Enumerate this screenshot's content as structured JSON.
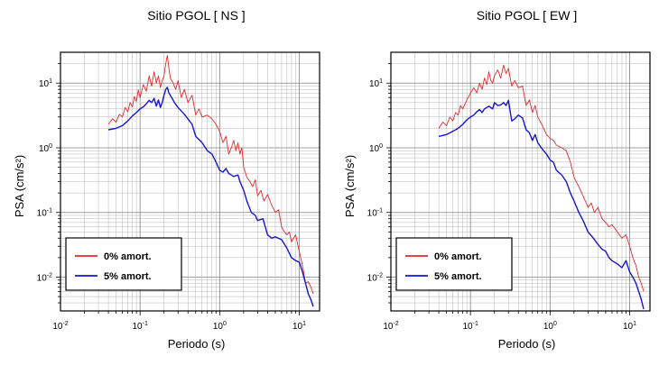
{
  "chart_data": [
    {
      "type": "line",
      "title": "Sitio PGOL [ NS ]",
      "xlabel": "Periodo (s)",
      "ylabel": "PSA (cm/s²)",
      "xscale": "log",
      "yscale": "log",
      "xlim": [
        0.01,
        18
      ],
      "ylim": [
        0.003,
        30
      ],
      "grid": true,
      "legend_position": "bottom-left",
      "x_ticks": [
        {
          "label": "10",
          "exp": "-2",
          "value": 0.01
        },
        {
          "label": "10",
          "exp": "-1",
          "value": 0.1
        },
        {
          "label": "10",
          "exp": "0",
          "value": 1
        },
        {
          "label": "10",
          "exp": "1",
          "value": 10
        }
      ],
      "y_ticks": [
        {
          "label": "10",
          "exp": "-2",
          "value": 0.01
        },
        {
          "label": "10",
          "exp": "-1",
          "value": 0.1
        },
        {
          "label": "10",
          "exp": "0",
          "value": 1
        },
        {
          "label": "10",
          "exp": "1",
          "value": 10
        }
      ],
      "series": [
        {
          "name": "0% amort.",
          "color": "#e8282a",
          "points": [
            [
              0.04,
              2.3
            ],
            [
              0.045,
              2.8
            ],
            [
              0.05,
              2.5
            ],
            [
              0.055,
              3.3
            ],
            [
              0.06,
              3.0
            ],
            [
              0.065,
              4.2
            ],
            [
              0.07,
              3.6
            ],
            [
              0.075,
              5.0
            ],
            [
              0.08,
              4.3
            ],
            [
              0.085,
              6.2
            ],
            [
              0.09,
              5.2
            ],
            [
              0.095,
              7.8
            ],
            [
              0.1,
              6.0
            ],
            [
              0.11,
              9.5
            ],
            [
              0.12,
              7.5
            ],
            [
              0.13,
              13.0
            ],
            [
              0.14,
              9.0
            ],
            [
              0.15,
              15.0
            ],
            [
              0.16,
              10.0
            ],
            [
              0.17,
              13.0
            ],
            [
              0.18,
              8.5
            ],
            [
              0.19,
              11.0
            ],
            [
              0.2,
              13.0
            ],
            [
              0.21,
              20.0
            ],
            [
              0.22,
              27.0
            ],
            [
              0.23,
              17.0
            ],
            [
              0.24,
              12.0
            ],
            [
              0.26,
              10.0
            ],
            [
              0.28,
              8.0
            ],
            [
              0.3,
              11.0
            ],
            [
              0.33,
              6.0
            ],
            [
              0.36,
              8.0
            ],
            [
              0.4,
              5.0
            ],
            [
              0.45,
              6.5
            ],
            [
              0.5,
              3.2
            ],
            [
              0.55,
              4.0
            ],
            [
              0.6,
              3.0
            ],
            [
              0.7,
              3.2
            ],
            [
              0.8,
              2.8
            ],
            [
              0.9,
              2.3
            ],
            [
              1.0,
              1.8
            ],
            [
              1.1,
              1.2
            ],
            [
              1.2,
              1.5
            ],
            [
              1.3,
              0.8
            ],
            [
              1.4,
              1.0
            ],
            [
              1.5,
              1.3
            ],
            [
              1.6,
              0.9
            ],
            [
              1.7,
              1.2
            ],
            [
              1.8,
              0.8
            ],
            [
              1.9,
              1.0
            ],
            [
              2.0,
              0.5
            ],
            [
              2.2,
              0.35
            ],
            [
              2.4,
              0.3
            ],
            [
              2.6,
              0.25
            ],
            [
              2.8,
              0.32
            ],
            [
              3.0,
              0.18
            ],
            [
              3.3,
              0.22
            ],
            [
              3.6,
              0.15
            ],
            [
              4.0,
              0.19
            ],
            [
              4.5,
              0.13
            ],
            [
              5.0,
              0.1
            ],
            [
              5.5,
              0.11
            ],
            [
              6.0,
              0.06
            ],
            [
              6.5,
              0.05
            ],
            [
              7.0,
              0.045
            ],
            [
              7.5,
              0.05
            ],
            [
              8.0,
              0.035
            ],
            [
              9.0,
              0.045
            ],
            [
              10.0,
              0.025
            ],
            [
              11.0,
              0.015
            ],
            [
              12.0,
              0.008
            ],
            [
              13.0,
              0.0085
            ],
            [
              14.0,
              0.007
            ],
            [
              15.0,
              0.0055
            ]
          ]
        },
        {
          "name": "5% amort.",
          "color": "#1515d4",
          "points": [
            [
              0.04,
              1.9
            ],
            [
              0.05,
              2.0
            ],
            [
              0.06,
              2.2
            ],
            [
              0.07,
              2.6
            ],
            [
              0.08,
              3.1
            ],
            [
              0.09,
              3.5
            ],
            [
              0.1,
              4.0
            ],
            [
              0.11,
              4.3
            ],
            [
              0.12,
              4.8
            ],
            [
              0.13,
              5.4
            ],
            [
              0.14,
              5.0
            ],
            [
              0.15,
              5.8
            ],
            [
              0.16,
              4.4
            ],
            [
              0.17,
              5.5
            ],
            [
              0.18,
              4.2
            ],
            [
              0.19,
              5.0
            ],
            [
              0.2,
              6.5
            ],
            [
              0.21,
              8.0
            ],
            [
              0.22,
              8.6
            ],
            [
              0.23,
              7.0
            ],
            [
              0.25,
              6.0
            ],
            [
              0.27,
              5.0
            ],
            [
              0.3,
              4.2
            ],
            [
              0.33,
              3.7
            ],
            [
              0.36,
              3.3
            ],
            [
              0.4,
              2.8
            ],
            [
              0.45,
              2.3
            ],
            [
              0.5,
              1.5
            ],
            [
              0.6,
              1.2
            ],
            [
              0.7,
              0.9
            ],
            [
              0.8,
              0.8
            ],
            [
              0.9,
              0.6
            ],
            [
              1.0,
              0.45
            ],
            [
              1.1,
              0.42
            ],
            [
              1.2,
              0.48
            ],
            [
              1.3,
              0.4
            ],
            [
              1.5,
              0.36
            ],
            [
              1.7,
              0.38
            ],
            [
              1.8,
              0.3
            ],
            [
              2.0,
              0.22
            ],
            [
              2.2,
              0.15
            ],
            [
              2.5,
              0.1
            ],
            [
              2.8,
              0.09
            ],
            [
              3.0,
              0.075
            ],
            [
              3.5,
              0.08
            ],
            [
              4.0,
              0.045
            ],
            [
              4.5,
              0.04
            ],
            [
              5.0,
              0.042
            ],
            [
              6.0,
              0.038
            ],
            [
              7.0,
              0.028
            ],
            [
              8.0,
              0.02
            ],
            [
              9.0,
              0.018
            ],
            [
              10.0,
              0.017
            ],
            [
              11.0,
              0.012
            ],
            [
              12.0,
              0.008
            ],
            [
              13.0,
              0.0055
            ],
            [
              14.0,
              0.0045
            ],
            [
              15.0,
              0.0035
            ]
          ]
        }
      ]
    },
    {
      "type": "line",
      "title": "Sitio PGOL [ EW ]",
      "xlabel": "Periodo (s)",
      "ylabel": "PSA (cm/s²)",
      "xscale": "log",
      "yscale": "log",
      "xlim": [
        0.01,
        18
      ],
      "ylim": [
        0.003,
        30
      ],
      "grid": true,
      "legend_position": "bottom-left",
      "x_ticks": [
        {
          "label": "10",
          "exp": "-2",
          "value": 0.01
        },
        {
          "label": "10",
          "exp": "-1",
          "value": 0.1
        },
        {
          "label": "10",
          "exp": "0",
          "value": 1
        },
        {
          "label": "10",
          "exp": "1",
          "value": 10
        }
      ],
      "y_ticks": [
        {
          "label": "10",
          "exp": "-2",
          "value": 0.01
        },
        {
          "label": "10",
          "exp": "-1",
          "value": 0.1
        },
        {
          "label": "10",
          "exp": "0",
          "value": 1
        },
        {
          "label": "10",
          "exp": "1",
          "value": 10
        }
      ],
      "series": [
        {
          "name": "0% amort.",
          "color": "#e8282a",
          "points": [
            [
              0.04,
              2.0
            ],
            [
              0.045,
              2.5
            ],
            [
              0.05,
              2.2
            ],
            [
              0.055,
              3.0
            ],
            [
              0.06,
              2.6
            ],
            [
              0.065,
              3.5
            ],
            [
              0.07,
              3.2
            ],
            [
              0.075,
              4.5
            ],
            [
              0.08,
              4.0
            ],
            [
              0.09,
              5.5
            ],
            [
              0.1,
              7.0
            ],
            [
              0.11,
              8.5
            ],
            [
              0.12,
              7.0
            ],
            [
              0.13,
              10.0
            ],
            [
              0.14,
              8.0
            ],
            [
              0.15,
              12.0
            ],
            [
              0.16,
              9.5
            ],
            [
              0.17,
              15.0
            ],
            [
              0.18,
              11.0
            ],
            [
              0.19,
              10.0
            ],
            [
              0.2,
              13.0
            ],
            [
              0.22,
              16.0
            ],
            [
              0.24,
              12.0
            ],
            [
              0.26,
              19.0
            ],
            [
              0.28,
              14.0
            ],
            [
              0.3,
              17.0
            ],
            [
              0.33,
              9.0
            ],
            [
              0.36,
              11.0
            ],
            [
              0.4,
              8.5
            ],
            [
              0.45,
              9.0
            ],
            [
              0.5,
              4.5
            ],
            [
              0.55,
              5.5
            ],
            [
              0.6,
              3.5
            ],
            [
              0.65,
              4.5
            ],
            [
              0.7,
              3.0
            ],
            [
              0.8,
              2.2
            ],
            [
              0.9,
              1.6
            ],
            [
              1.0,
              1.4
            ],
            [
              1.1,
              1.3
            ],
            [
              1.2,
              1.1
            ],
            [
              1.4,
              1.0
            ],
            [
              1.6,
              0.9
            ],
            [
              1.8,
              0.6
            ],
            [
              2.0,
              0.35
            ],
            [
              2.3,
              0.25
            ],
            [
              2.6,
              0.18
            ],
            [
              3.0,
              0.12
            ],
            [
              3.3,
              0.14
            ],
            [
              3.6,
              0.1
            ],
            [
              4.0,
              0.12
            ],
            [
              4.5,
              0.08
            ],
            [
              5.0,
              0.07
            ],
            [
              5.5,
              0.06
            ],
            [
              6.0,
              0.065
            ],
            [
              7.0,
              0.05
            ],
            [
              8.0,
              0.04
            ],
            [
              9.0,
              0.045
            ],
            [
              10.0,
              0.03
            ],
            [
              11.0,
              0.02
            ],
            [
              12.0,
              0.015
            ],
            [
              13.0,
              0.01
            ],
            [
              14.0,
              0.008
            ],
            [
              15.0,
              0.006
            ]
          ]
        },
        {
          "name": "5% amort.",
          "color": "#1515d4",
          "points": [
            [
              0.04,
              1.5
            ],
            [
              0.05,
              1.6
            ],
            [
              0.06,
              1.8
            ],
            [
              0.07,
              2.0
            ],
            [
              0.08,
              2.3
            ],
            [
              0.09,
              2.7
            ],
            [
              0.1,
              3.0
            ],
            [
              0.11,
              3.2
            ],
            [
              0.12,
              3.6
            ],
            [
              0.13,
              3.9
            ],
            [
              0.14,
              3.5
            ],
            [
              0.15,
              4.0
            ],
            [
              0.17,
              4.4
            ],
            [
              0.19,
              4.0
            ],
            [
              0.2,
              5.0
            ],
            [
              0.22,
              4.5
            ],
            [
              0.24,
              4.6
            ],
            [
              0.26,
              5.0
            ],
            [
              0.28,
              4.5
            ],
            [
              0.3,
              5.4
            ],
            [
              0.33,
              2.6
            ],
            [
              0.36,
              2.8
            ],
            [
              0.4,
              3.2
            ],
            [
              0.45,
              2.9
            ],
            [
              0.5,
              1.9
            ],
            [
              0.55,
              1.7
            ],
            [
              0.6,
              1.3
            ],
            [
              0.65,
              1.6
            ],
            [
              0.7,
              1.2
            ],
            [
              0.8,
              0.95
            ],
            [
              0.9,
              0.8
            ],
            [
              1.0,
              0.65
            ],
            [
              1.1,
              0.6
            ],
            [
              1.2,
              0.45
            ],
            [
              1.4,
              0.38
            ],
            [
              1.6,
              0.3
            ],
            [
              1.8,
              0.2
            ],
            [
              2.0,
              0.15
            ],
            [
              2.3,
              0.1
            ],
            [
              2.6,
              0.075
            ],
            [
              3.0,
              0.05
            ],
            [
              3.5,
              0.04
            ],
            [
              4.0,
              0.032
            ],
            [
              4.5,
              0.027
            ],
            [
              5.0,
              0.025
            ],
            [
              5.5,
              0.02
            ],
            [
              6.0,
              0.018
            ],
            [
              7.0,
              0.016
            ],
            [
              8.0,
              0.014
            ],
            [
              9.0,
              0.018
            ],
            [
              10.0,
              0.012
            ],
            [
              11.0,
              0.01
            ],
            [
              12.0,
              0.008
            ],
            [
              13.0,
              0.006
            ],
            [
              14.0,
              0.0045
            ],
            [
              15.0,
              0.0032
            ]
          ]
        }
      ]
    }
  ]
}
